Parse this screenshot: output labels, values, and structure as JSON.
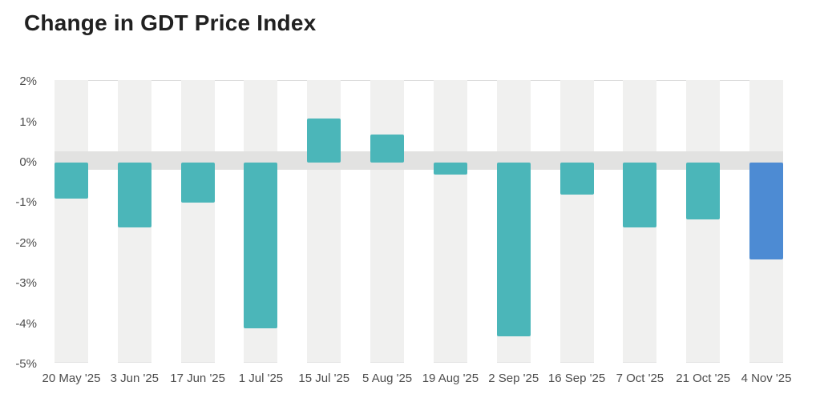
{
  "title": "Change in GDT Price Index",
  "colors": {
    "bar_teal": "#4bb6b9",
    "bar_blue": "#4d8bd3",
    "stripe": "#f0f0ef",
    "zero_band": "#e2e2e1",
    "plot_border": "#dcdcdc",
    "title_text": "#212121",
    "axis_text": "#4d4d4d"
  },
  "chart_data": {
    "type": "bar",
    "title": "Change in GDT Price Index",
    "categories": [
      "20 May '25",
      "3 Jun '25",
      "17 Jun '25",
      "1 Jul '25",
      "15 Jul '25",
      "5 Aug '25",
      "19 Aug '25",
      "2 Sep '25",
      "16 Sep '25",
      "7 Oct '25",
      "21 Oct '25",
      "4 Nov '25"
    ],
    "values": [
      -0.9,
      -1.6,
      -1.0,
      -4.1,
      1.1,
      0.7,
      -0.3,
      -4.3,
      -0.8,
      -1.6,
      -1.4,
      -2.4
    ],
    "value_unit": "%",
    "bar_colors": [
      "#4bb6b9",
      "#4bb6b9",
      "#4bb6b9",
      "#4bb6b9",
      "#4bb6b9",
      "#4bb6b9",
      "#4bb6b9",
      "#4bb6b9",
      "#4bb6b9",
      "#4bb6b9",
      "#4bb6b9",
      "#4d8bd3"
    ],
    "xlabel": "",
    "ylabel": "",
    "ylim": [
      -5,
      2
    ],
    "ytick_labels": [
      "2%",
      "1%",
      "0%",
      "-1%",
      "-2%",
      "-3%",
      "-4%",
      "-5%"
    ],
    "ytick_values": [
      2,
      1,
      0,
      -1,
      -2,
      -3,
      -4,
      -5
    ],
    "grid": "off",
    "legend": "none",
    "zero_band": true,
    "background_category_stripes": true
  }
}
